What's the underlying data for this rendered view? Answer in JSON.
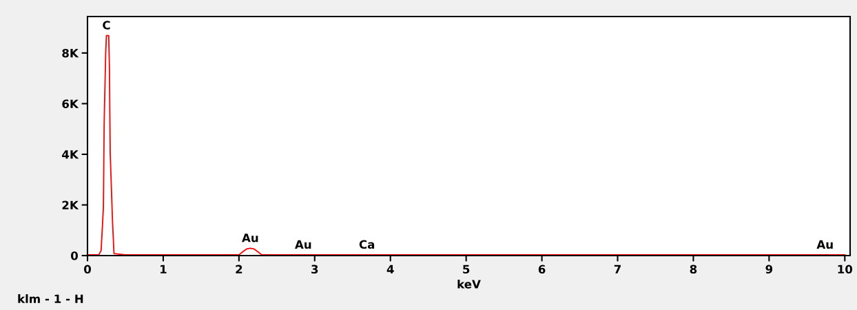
{
  "chart_data": {
    "type": "line",
    "xlabel": "keV",
    "x": [
      0,
      0.15,
      0.18,
      0.21,
      0.22,
      0.24,
      0.25,
      0.28,
      0.29,
      0.3,
      0.33,
      0.35,
      0.5,
      1.0,
      2.0,
      2.05,
      2.1,
      2.15,
      2.2,
      2.25,
      2.3,
      2.85,
      3.0,
      3.69,
      4.0,
      6.0,
      8.0,
      9.74,
      10.0
    ],
    "series": [
      {
        "color": "#ff0000",
        "values": [
          30,
          30,
          200,
          1890,
          5200,
          7960,
          8690,
          8690,
          7370,
          4060,
          1390,
          80,
          30,
          30,
          30,
          150,
          260,
          290,
          260,
          150,
          30,
          30,
          30,
          30,
          30,
          30,
          30,
          30,
          30
        ]
      }
    ],
    "xlim": [
      0,
      10.07
    ],
    "ylim": [
      0,
      9440
    ],
    "xticks": [
      0,
      1,
      2,
      3,
      4,
      5,
      6,
      7,
      8,
      9,
      10
    ],
    "yticks": [
      0,
      {
        "value": 2000,
        "label": "2K"
      },
      {
        "value": 4000,
        "label": "4K"
      },
      {
        "value": 6000,
        "label": "6K"
      },
      {
        "value": 8000,
        "label": "8K"
      }
    ],
    "grid": false,
    "legend": false,
    "marker": "none",
    "line_style": "solid",
    "annotations": [
      {
        "text": "C",
        "x": 0.25,
        "y": 8690
      },
      {
        "text": "Au",
        "x": 2.15,
        "y": 290
      },
      {
        "text": "Au",
        "x": 2.85,
        "y": 30
      },
      {
        "text": "Ca",
        "x": 3.69,
        "y": 30
      },
      {
        "text": "Au",
        "x": 9.74,
        "y": 30
      },
      "klm - 1 - H"
    ]
  }
}
